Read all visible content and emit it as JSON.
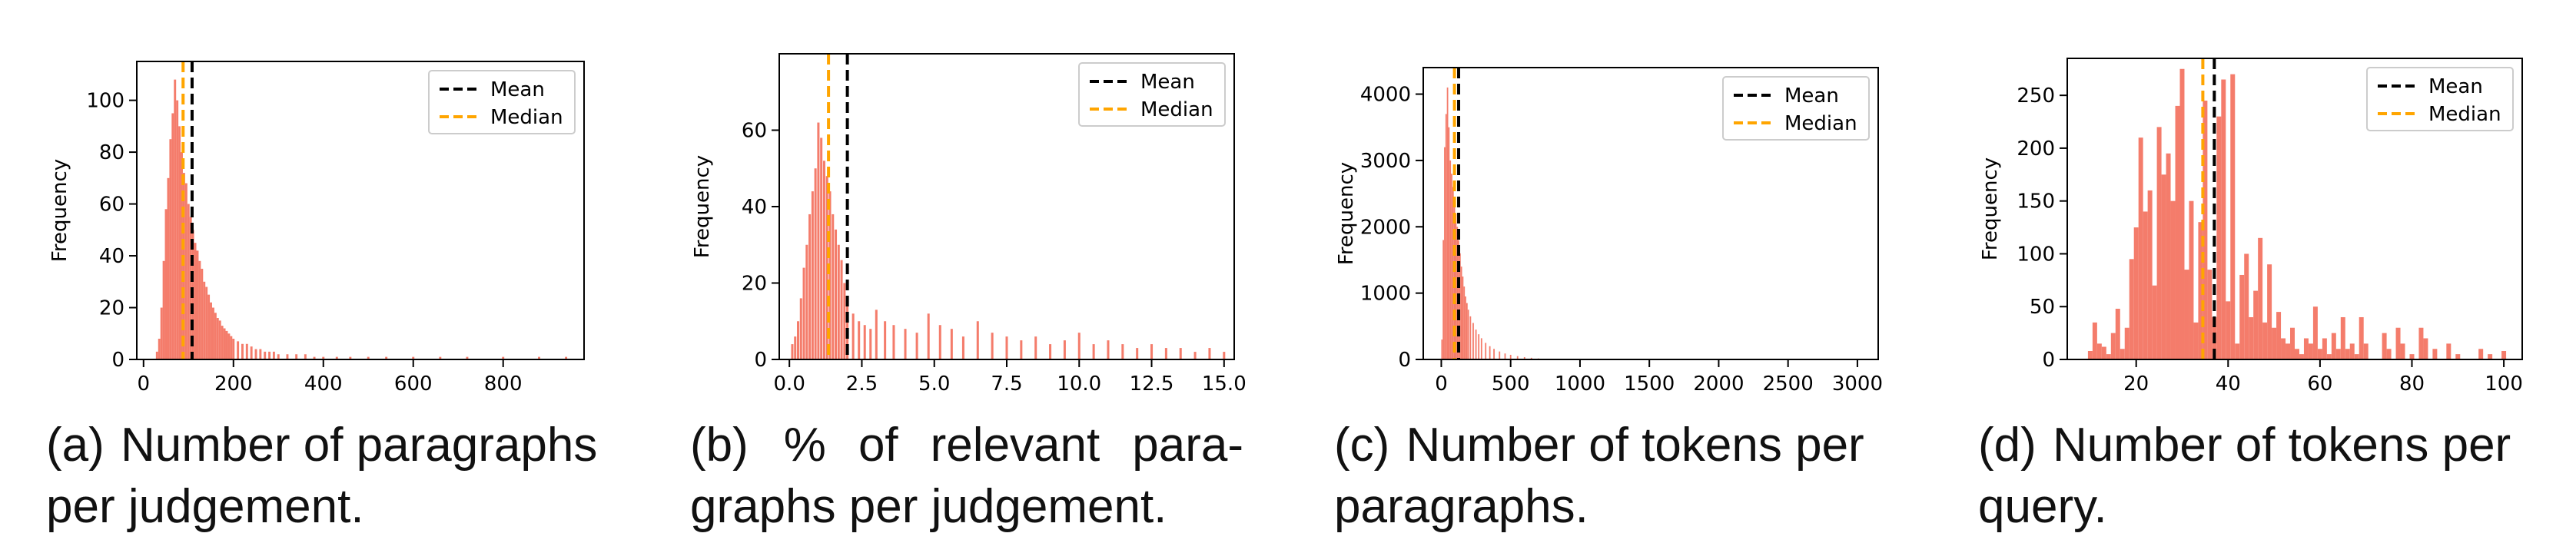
{
  "figure": {
    "panels": [
      {
        "label": "(a)",
        "caption": "Number of paragraphs per judgement."
      },
      {
        "label": "(b)",
        "caption": "% of relevant para-graphs per judgement."
      },
      {
        "label": "(c)",
        "caption": "Number of tokens per paragraphs."
      },
      {
        "label": "(d)",
        "caption": "Number of tokens per query."
      }
    ]
  },
  "colors": {
    "bars": "#f47c6b",
    "mean": "#000000",
    "median": "#ffa500"
  },
  "chart_data": [
    {
      "type": "bar",
      "title": "",
      "xlabel": "",
      "ylabel": "Frequency",
      "xlim": [
        -15,
        980
      ],
      "ylim": [
        0,
        115
      ],
      "xticks": [
        0,
        200,
        400,
        600,
        800
      ],
      "xtick_labels": [
        "0",
        "200",
        "400",
        "600",
        "800"
      ],
      "yticks": [
        0,
        20,
        40,
        60,
        80,
        100
      ],
      "ytick_labels": [
        "0",
        "20",
        "40",
        "60",
        "80",
        "100"
      ],
      "legend": {
        "position": "top-right",
        "entries": [
          "Mean",
          "Median"
        ]
      },
      "mean": 108,
      "median": 88,
      "grid": false,
      "bin_width": 5,
      "x": [
        30,
        35,
        40,
        45,
        50,
        55,
        60,
        65,
        70,
        75,
        80,
        85,
        90,
        95,
        100,
        105,
        110,
        115,
        120,
        125,
        130,
        135,
        140,
        145,
        150,
        155,
        160,
        165,
        170,
        175,
        180,
        185,
        190,
        195,
        200,
        210,
        220,
        230,
        240,
        250,
        260,
        270,
        280,
        290,
        300,
        320,
        340,
        360,
        380,
        400,
        430,
        460,
        500,
        540,
        600,
        660,
        720,
        800,
        880,
        940
      ],
      "values": [
        3,
        8,
        20,
        38,
        58,
        70,
        85,
        95,
        108,
        100,
        90,
        80,
        72,
        68,
        60,
        55,
        50,
        45,
        42,
        38,
        35,
        30,
        28,
        25,
        22,
        20,
        18,
        16,
        15,
        13,
        12,
        11,
        10,
        9,
        8,
        7,
        6,
        6,
        5,
        4,
        4,
        3,
        3,
        3,
        2,
        2,
        2,
        2,
        1,
        1,
        1,
        1,
        1,
        1,
        1,
        1,
        1,
        1,
        1,
        1
      ]
    },
    {
      "type": "bar",
      "title": "",
      "xlabel": "",
      "ylabel": "Frequency",
      "xlim": [
        -0.35,
        15.35
      ],
      "ylim": [
        0,
        80
      ],
      "xticks": [
        0,
        2.5,
        5,
        7.5,
        10,
        12.5,
        15
      ],
      "xtick_labels": [
        "0.0",
        "2.5",
        "5.0",
        "7.5",
        "10.0",
        "12.5",
        "15.0"
      ],
      "yticks": [
        0,
        20,
        40,
        60
      ],
      "ytick_labels": [
        "0",
        "20",
        "40",
        "60"
      ],
      "legend": {
        "position": "top-right",
        "entries": [
          "Mean",
          "Median"
        ]
      },
      "mean": 2.0,
      "median": 1.35,
      "grid": false,
      "bin_width": 0.08,
      "x": [
        0.1,
        0.2,
        0.3,
        0.4,
        0.5,
        0.6,
        0.7,
        0.8,
        0.9,
        1.0,
        1.1,
        1.2,
        1.3,
        1.4,
        1.5,
        1.6,
        1.7,
        1.8,
        1.9,
        2.0,
        2.2,
        2.4,
        2.6,
        2.8,
        3.0,
        3.3,
        3.6,
        4.0,
        4.4,
        4.8,
        5.2,
        5.6,
        6.0,
        6.5,
        7.0,
        7.5,
        8.0,
        8.5,
        9.0,
        9.5,
        10.0,
        10.5,
        11.0,
        11.5,
        12.0,
        12.5,
        13.0,
        13.5,
        14.0,
        14.5,
        15.0
      ],
      "values": [
        4,
        6,
        10,
        16,
        24,
        30,
        38,
        44,
        50,
        62,
        58,
        52,
        48,
        44,
        38,
        34,
        30,
        26,
        20,
        15,
        12,
        10,
        9,
        8,
        13,
        10,
        9,
        8,
        7,
        12,
        9,
        8,
        6,
        10,
        7,
        6,
        5,
        6,
        4,
        5,
        7,
        4,
        5,
        4,
        3,
        4,
        3,
        3,
        2,
        3,
        2
      ]
    },
    {
      "type": "bar",
      "title": "",
      "xlabel": "",
      "ylabel": "Frequency",
      "xlim": [
        -130,
        3150
      ],
      "ylim": [
        0,
        4400
      ],
      "xticks": [
        0,
        500,
        1000,
        1500,
        2000,
        2500,
        3000
      ],
      "xtick_labels": [
        "0",
        "500",
        "1000",
        "1500",
        "2000",
        "2500",
        "3000"
      ],
      "yticks": [
        0,
        1000,
        2000,
        3000,
        4000
      ],
      "ytick_labels": [
        "0",
        "1000",
        "2000",
        "3000",
        "4000"
      ],
      "legend": {
        "position": "top-right",
        "entries": [
          "Mean",
          "Median"
        ]
      },
      "mean": 125,
      "median": 95,
      "grid": false,
      "bin_width": 10,
      "x": [
        5,
        15,
        25,
        35,
        45,
        55,
        65,
        75,
        85,
        95,
        105,
        115,
        125,
        135,
        145,
        155,
        165,
        175,
        185,
        195,
        210,
        230,
        250,
        270,
        290,
        320,
        350,
        380,
        420,
        460,
        500,
        550,
        600,
        650,
        700,
        800
      ],
      "values": [
        300,
        1800,
        3200,
        3700,
        4100,
        3500,
        3000,
        2800,
        2600,
        2400,
        2200,
        2000,
        1800,
        1600,
        1400,
        1250,
        1100,
        950,
        850,
        750,
        650,
        550,
        450,
        380,
        320,
        250,
        200,
        160,
        120,
        90,
        70,
        50,
        35,
        25,
        15,
        8
      ]
    },
    {
      "type": "bar",
      "title": "",
      "xlabel": "",
      "ylabel": "Frequency",
      "xlim": [
        5,
        104
      ],
      "ylim": [
        0,
        285
      ],
      "xticks": [
        20,
        40,
        60,
        80,
        100
      ],
      "xtick_labels": [
        "20",
        "40",
        "60",
        "80",
        "100"
      ],
      "yticks": [
        0,
        50,
        100,
        150,
        200,
        250
      ],
      "ytick_labels": [
        "0",
        "50",
        "100",
        "150",
        "200",
        "250"
      ],
      "legend": {
        "position": "top-right",
        "entries": [
          "Mean",
          "Median"
        ]
      },
      "mean": 37,
      "median": 34.5,
      "grid": false,
      "bin_width": 1,
      "x": [
        10,
        11,
        12,
        13,
        14,
        15,
        16,
        17,
        18,
        19,
        20,
        21,
        22,
        23,
        24,
        25,
        26,
        27,
        28,
        29,
        30,
        31,
        32,
        33,
        34,
        35,
        36,
        37,
        38,
        39,
        40,
        41,
        42,
        43,
        44,
        45,
        46,
        47,
        48,
        49,
        50,
        51,
        52,
        53,
        54,
        55,
        56,
        57,
        58,
        59,
        60,
        61,
        62,
        63,
        64,
        65,
        66,
        67,
        68,
        69,
        70,
        74,
        75,
        77,
        78,
        80,
        82,
        83,
        85,
        88,
        90,
        95,
        97,
        100
      ],
      "values": [
        8,
        35,
        15,
        12,
        5,
        25,
        48,
        10,
        30,
        95,
        125,
        210,
        140,
        160,
        70,
        220,
        175,
        195,
        150,
        240,
        275,
        85,
        150,
        35,
        130,
        245,
        85,
        40,
        230,
        265,
        55,
        270,
        15,
        80,
        100,
        40,
        65,
        115,
        35,
        90,
        30,
        45,
        20,
        15,
        30,
        10,
        5,
        20,
        15,
        50,
        10,
        20,
        5,
        25,
        10,
        40,
        10,
        15,
        5,
        40,
        15,
        25,
        10,
        30,
        15,
        5,
        30,
        20,
        10,
        15,
        5,
        10,
        5,
        8
      ]
    }
  ]
}
